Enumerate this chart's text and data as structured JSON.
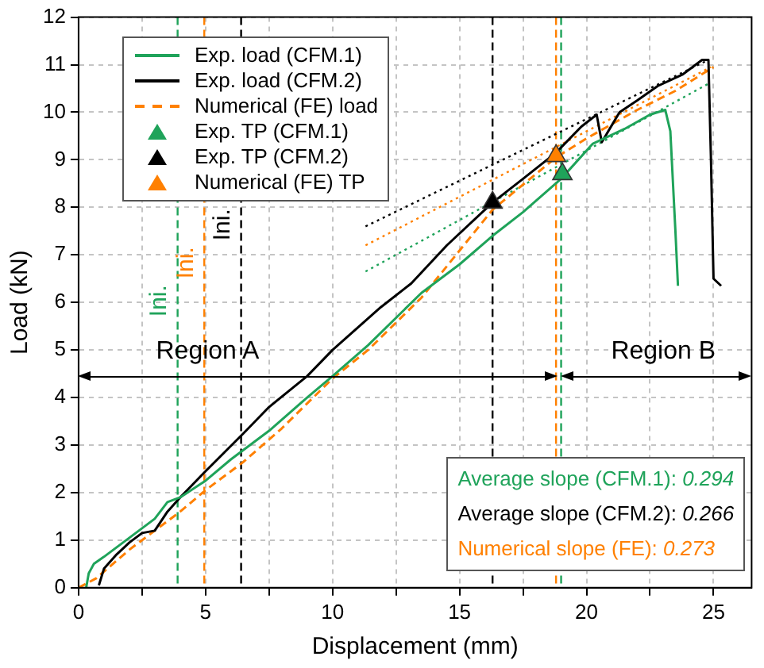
{
  "chart_data": {
    "type": "line",
    "xlabel": "Displacement (mm)",
    "ylabel": "Load (kN)",
    "xlim": [
      0,
      26.5
    ],
    "ylim": [
      0,
      12
    ],
    "xticks": [
      0,
      {
        "value": 2.5,
        "label": null
      },
      5,
      {
        "value": 7.5,
        "label": null
      },
      10,
      {
        "value": 12.5,
        "label": null
      },
      15,
      {
        "value": 17.5,
        "label": null
      },
      20,
      {
        "value": 22.5,
        "label": null
      },
      25
    ],
    "yticks": [
      0,
      1,
      2,
      3,
      4,
      5,
      6,
      7,
      8,
      9,
      10,
      11,
      12
    ],
    "grid": true,
    "legend": "top left",
    "series": [
      {
        "name": "Exp. load (CFM.1)",
        "color": "#1fa35a",
        "line_style": "solid",
        "x": [
          0.3,
          0.4,
          0.6,
          1,
          1.5,
          2,
          2.5,
          3,
          3.5,
          4,
          5,
          6,
          7.5,
          9,
          10,
          11.4,
          13.5,
          15,
          16.3,
          17.5,
          19,
          20.25,
          21.5,
          22.5,
          23.1,
          23.3,
          23.5,
          23.6
        ],
        "values": [
          0,
          0.3,
          0.5,
          0.65,
          0.85,
          1.05,
          1.25,
          1.45,
          1.8,
          1.9,
          2.25,
          2.7,
          3.3,
          4.0,
          4.45,
          5.1,
          6.2,
          6.8,
          7.4,
          7.9,
          8.6,
          9.34,
          9.65,
          9.95,
          10.05,
          9.6,
          7.5,
          6.35
        ]
      },
      {
        "name": "Exp. load (CFM.2)",
        "color": "#000000",
        "line_style": "solid",
        "x": [
          0.8,
          1,
          1.5,
          2,
          2.5,
          3,
          3.5,
          4,
          5,
          6.5,
          7.5,
          9,
          10,
          11.9,
          13.1,
          14.5,
          16.3,
          17.5,
          18.8,
          19.8,
          20.4,
          20.6,
          21.3,
          22,
          22.8,
          23.8,
          24.55,
          24.8,
          24.9,
          25,
          25.3
        ],
        "values": [
          0.05,
          0.4,
          0.7,
          0.95,
          1.15,
          1.2,
          1.6,
          1.9,
          2.45,
          3.25,
          3.8,
          4.45,
          5.0,
          5.9,
          6.4,
          7.2,
          8.1,
          8.6,
          9.15,
          9.7,
          9.95,
          9.37,
          10.0,
          10.25,
          10.55,
          10.8,
          11.1,
          11.1,
          9,
          6.5,
          6.35
        ]
      },
      {
        "name": "Numerical (FE) load",
        "color": "#ff8000",
        "line_style": "dashed",
        "x": [
          0,
          0.7,
          2,
          4,
          5,
          6.5,
          8,
          10,
          11.4,
          13.5,
          16.3,
          18.8,
          20,
          22,
          23.5,
          25
        ],
        "values": [
          0,
          0.2,
          0.8,
          1.6,
          2.05,
          2.65,
          3.35,
          4.4,
          5.0,
          6.1,
          7.95,
          9.05,
          9.45,
          10.05,
          10.45,
          10.95
        ]
      },
      {
        "name": "Exp. TP (CFM.1)",
        "type": "scatter",
        "color": "#1fa35a",
        "marker": "triangle",
        "x": [
          19.05
        ],
        "values": [
          8.7
        ]
      },
      {
        "name": "Exp. TP (CFM.2)",
        "type": "scatter",
        "color": "#000000",
        "marker": "triangle",
        "x": [
          16.3
        ],
        "values": [
          8.1
        ]
      },
      {
        "name": "Numerical (FE) TP",
        "type": "scatter",
        "color": "#ff8000",
        "marker": "triangle",
        "x": [
          18.8
        ],
        "values": [
          9.08
        ]
      },
      {
        "color": "#1fa35a",
        "line_style": "dotted",
        "x": [
          11.3,
          24.8
        ],
        "values": [
          6.65,
          10.6
        ]
      },
      {
        "color": "#000000",
        "line_style": "dotted",
        "x": [
          11.3,
          24.8
        ],
        "values": [
          7.6,
          11.1
        ]
      },
      {
        "color": "#ff8000",
        "line_style": "dotted",
        "x": [
          11.3,
          24.9
        ],
        "values": [
          7.2,
          10.95
        ]
      }
    ],
    "ref_lines": [
      {
        "axis": "x",
        "value": 3.9,
        "label": "Ini.",
        "color": "#1fa35a",
        "line_style": "dashed"
      },
      {
        "axis": "x",
        "value": 4.95,
        "label": "Ini.",
        "color": "#ff8000",
        "line_style": "dashed"
      },
      {
        "axis": "x",
        "value": 6.4,
        "label": "Ini.",
        "color": "#000000",
        "line_style": "dashed"
      },
      {
        "axis": "x",
        "value": 16.3,
        "color": "#000000",
        "line_style": "dashed"
      },
      {
        "axis": "x",
        "value": 18.8,
        "color": "#ff8000",
        "line_style": "dashed"
      },
      {
        "axis": "x",
        "value": 19.0,
        "color": "#1fa35a",
        "line_style": "dashed"
      }
    ],
    "annotations": [
      "Region A",
      "Region B",
      "Average slope (CFM.1): 0.294",
      "Average slope (CFM.2): 0.266",
      "Numerical slope (FE): 0.273"
    ]
  }
}
